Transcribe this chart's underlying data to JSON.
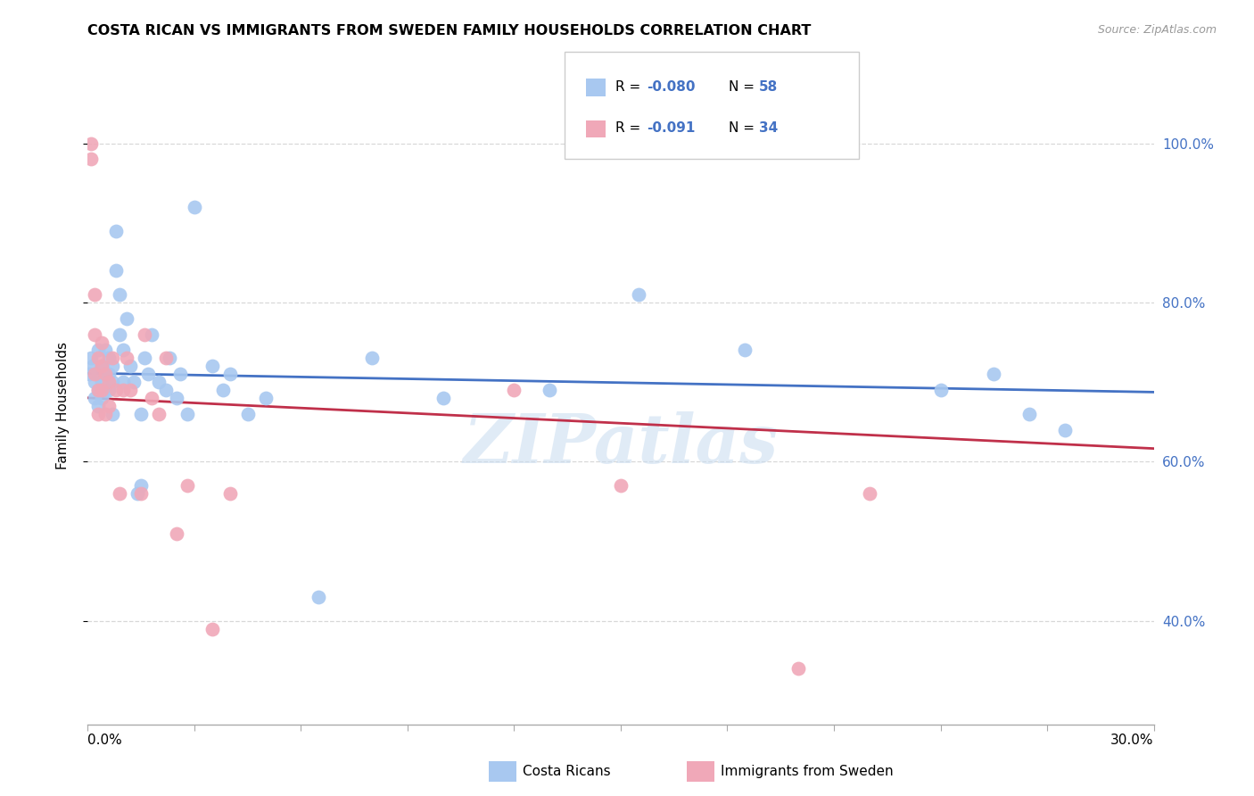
{
  "title": "COSTA RICAN VS IMMIGRANTS FROM SWEDEN FAMILY HOUSEHOLDS CORRELATION CHART",
  "source": "Source: ZipAtlas.com",
  "ylabel": "Family Households",
  "xlim": [
    0.0,
    0.3
  ],
  "ylim": [
    0.27,
    1.07
  ],
  "blue_color": "#A8C8F0",
  "pink_color": "#F0A8B8",
  "blue_line_color": "#4472C4",
  "red_line_color": "#C0304A",
  "right_ytick_values": [
    0.4,
    0.6,
    0.8,
    1.0
  ],
  "right_ytick_labels": [
    "40.0%",
    "60.0%",
    "80.0%",
    "100.0%"
  ],
  "grid_color": "#D8D8D8",
  "watermark": "ZIPatlas",
  "blue_R": -0.08,
  "blue_N": 58,
  "pink_R": -0.091,
  "pink_N": 34,
  "blue_x": [
    0.0005,
    0.001,
    0.0015,
    0.002,
    0.002,
    0.003,
    0.003,
    0.003,
    0.003,
    0.004,
    0.004,
    0.004,
    0.005,
    0.005,
    0.005,
    0.006,
    0.006,
    0.006,
    0.007,
    0.007,
    0.007,
    0.008,
    0.008,
    0.009,
    0.009,
    0.01,
    0.01,
    0.011,
    0.012,
    0.013,
    0.014,
    0.015,
    0.015,
    0.016,
    0.017,
    0.018,
    0.02,
    0.022,
    0.023,
    0.025,
    0.026,
    0.028,
    0.03,
    0.035,
    0.038,
    0.04,
    0.045,
    0.05,
    0.065,
    0.08,
    0.1,
    0.13,
    0.155,
    0.185,
    0.24,
    0.255,
    0.265,
    0.275
  ],
  "blue_y": [
    0.71,
    0.73,
    0.72,
    0.7,
    0.68,
    0.74,
    0.71,
    0.69,
    0.67,
    0.72,
    0.7,
    0.68,
    0.74,
    0.71,
    0.69,
    0.73,
    0.69,
    0.71,
    0.7,
    0.66,
    0.72,
    0.89,
    0.84,
    0.76,
    0.81,
    0.74,
    0.7,
    0.78,
    0.72,
    0.7,
    0.56,
    0.57,
    0.66,
    0.73,
    0.71,
    0.76,
    0.7,
    0.69,
    0.73,
    0.68,
    0.71,
    0.66,
    0.92,
    0.72,
    0.69,
    0.71,
    0.66,
    0.68,
    0.43,
    0.73,
    0.68,
    0.69,
    0.81,
    0.74,
    0.69,
    0.71,
    0.66,
    0.64
  ],
  "pink_x": [
    0.001,
    0.001,
    0.002,
    0.002,
    0.002,
    0.003,
    0.003,
    0.003,
    0.004,
    0.004,
    0.004,
    0.005,
    0.005,
    0.006,
    0.006,
    0.007,
    0.008,
    0.009,
    0.01,
    0.011,
    0.012,
    0.015,
    0.016,
    0.018,
    0.02,
    0.022,
    0.025,
    0.028,
    0.035,
    0.04,
    0.12,
    0.15,
    0.2,
    0.22
  ],
  "pink_y": [
    1.0,
    0.98,
    0.76,
    0.81,
    0.71,
    0.73,
    0.69,
    0.66,
    0.75,
    0.72,
    0.69,
    0.71,
    0.66,
    0.7,
    0.67,
    0.73,
    0.69,
    0.56,
    0.69,
    0.73,
    0.69,
    0.56,
    0.76,
    0.68,
    0.66,
    0.73,
    0.51,
    0.57,
    0.39,
    0.56,
    0.69,
    0.57,
    0.34,
    0.56
  ]
}
